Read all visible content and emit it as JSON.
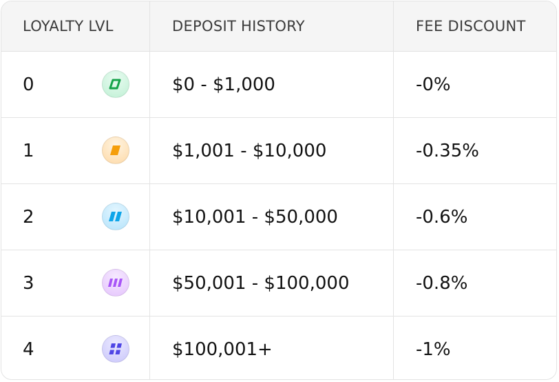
{
  "headers": {
    "loyalty": "LOYALTY LVL",
    "deposit": "DEPOSIT HISTORY",
    "fee": "FEE DISCOUNT"
  },
  "rows": [
    {
      "level": "0",
      "deposit": "$0 - $1,000",
      "fee": "-0%",
      "badge_color": "#22c55e",
      "icon": "loyalty-tier-0-icon"
    },
    {
      "level": "1",
      "deposit": "$1,001 - $10,000",
      "fee": "-0.35%",
      "badge_color": "#f59e0b",
      "icon": "loyalty-tier-1-icon"
    },
    {
      "level": "2",
      "deposit": "$10,001 - $50,000",
      "fee": "-0.6%",
      "badge_color": "#0ea5e9",
      "icon": "loyalty-tier-2-icon"
    },
    {
      "level": "3",
      "deposit": "$50,001 - $100,000",
      "fee": "-0.8%",
      "badge_color": "#a855f7",
      "icon": "loyalty-tier-3-icon"
    },
    {
      "level": "4",
      "deposit": "$100,001+",
      "fee": "-1%",
      "badge_color": "#4f46e5",
      "icon": "loyalty-tier-4-icon"
    }
  ]
}
